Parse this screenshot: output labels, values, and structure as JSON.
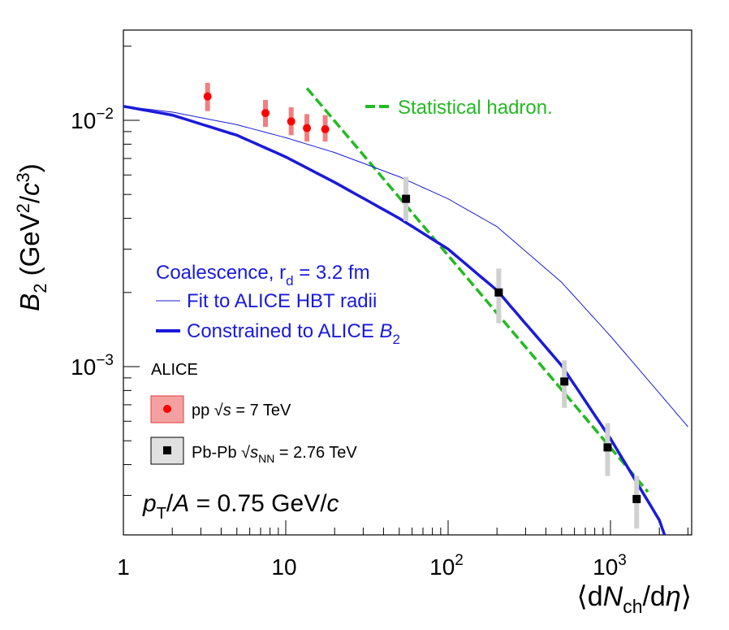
{
  "chart_data": {
    "type": "scatter",
    "xlabel": "⟨dN_ch/dη⟩",
    "ylabel": "B_2 (GeV^2/c^3)",
    "xscale": "log",
    "yscale": "log",
    "xlim": [
      1,
      3000
    ],
    "ylim": [
      0.0002,
      0.025
    ],
    "x_tick_labels": [
      "1",
      "10",
      "10^2",
      "10^3"
    ],
    "y_tick_labels": [
      "10^-2",
      "10^-3"
    ],
    "annotation": "p_T/A = 0.75 GeV/c",
    "legend_header": "ALICE",
    "series": [
      {
        "name": "pp √s = 7 TeV",
        "marker": "circle",
        "color": "#ff0000",
        "error_color": "#f08080",
        "x": [
          3.3,
          7.5,
          10.8,
          13.5,
          17.5
        ],
        "y": [
          0.0125,
          0.0107,
          0.0099,
          0.0093,
          0.0092
        ],
        "y_low": [
          0.0109,
          0.0094,
          0.0087,
          0.0082,
          0.0082
        ],
        "y_high": [
          0.0142,
          0.0121,
          0.0113,
          0.0106,
          0.0105
        ]
      },
      {
        "name": "Pb-Pb √s_NN = 2.76 TeV",
        "marker": "square",
        "color": "#000000",
        "error_color": "#d0d0d0",
        "x": [
          55,
          205,
          520,
          960,
          1450
        ],
        "y": [
          0.0048,
          0.002,
          0.00087,
          0.00047,
          0.00029
        ],
        "y_low": [
          0.0039,
          0.0015,
          0.00068,
          0.00036,
          0.00022
        ],
        "y_high": [
          0.0059,
          0.0025,
          0.00106,
          0.00059,
          0.00036
        ]
      }
    ],
    "curves": [
      {
        "name": "Statistical hadron.",
        "style": "dashed",
        "color": "#22bb22",
        "x": [
          13.5,
          1700
        ],
        "y": [
          0.0135,
          0.00031
        ]
      },
      {
        "name": "Fit to ALICE HBT radii",
        "style": "thin",
        "color": "#1a1adb",
        "x": [
          1,
          2,
          5,
          10,
          20,
          50,
          100,
          200,
          500,
          1000,
          2000,
          3000
        ],
        "y": [
          0.0114,
          0.0108,
          0.0096,
          0.0085,
          0.0074,
          0.0059,
          0.0048,
          0.0037,
          0.0022,
          0.00133,
          0.00078,
          0.00057
        ]
      },
      {
        "name": "Constrained to ALICE B_2",
        "style": "thick",
        "color": "#1a1adb",
        "x": [
          1,
          2,
          5,
          10,
          20,
          50,
          100,
          200,
          500,
          1000,
          2000,
          2200
        ],
        "y": [
          0.0114,
          0.0105,
          0.0087,
          0.0071,
          0.0056,
          0.004,
          0.003,
          0.00204,
          0.00101,
          0.00051,
          0.000238,
          0.000199
        ]
      }
    ],
    "legend_title": "Coalescence, r_d = 3.2 fm"
  }
}
